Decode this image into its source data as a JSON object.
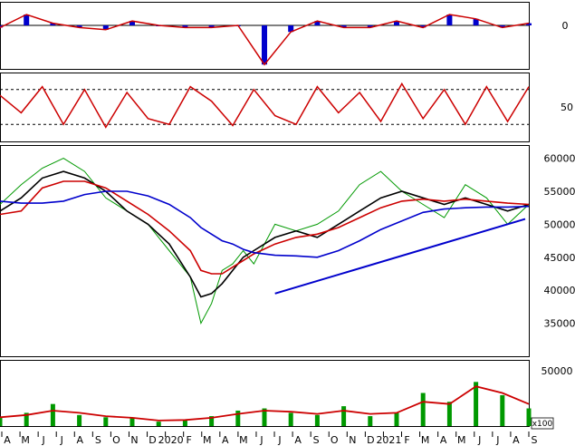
{
  "chart_data": [
    {
      "type": "line",
      "panel": "oscillator",
      "y_ticks": [
        "0"
      ],
      "colors": {
        "line": "#cc0000",
        "signal": "#cc0000",
        "histogram": "#0000cc"
      },
      "x": [
        0,
        5,
        10,
        15,
        20,
        25,
        30,
        35,
        40,
        45,
        50,
        55,
        60,
        65,
        70,
        75,
        80,
        85,
        90,
        95,
        100
      ],
      "series": [
        {
          "values": [
            -1,
            5,
            1,
            -1,
            -2,
            2,
            0,
            -1,
            -1,
            0,
            -18,
            -3,
            2,
            -1,
            -1,
            2,
            -1,
            5,
            3,
            -1,
            1
          ]
        }
      ]
    },
    {
      "type": "line",
      "panel": "stochastic",
      "y_ticks": [
        "50"
      ],
      "reference_lines": [
        80,
        20
      ],
      "colors": {
        "line": "#cc0000"
      },
      "x": [
        0,
        4,
        8,
        12,
        16,
        20,
        24,
        28,
        32,
        36,
        40,
        44,
        48,
        52,
        56,
        60,
        64,
        68,
        72,
        76,
        80,
        84,
        88,
        92,
        96,
        100
      ],
      "series": [
        {
          "values": [
            70,
            40,
            85,
            20,
            80,
            15,
            75,
            30,
            20,
            85,
            60,
            18,
            80,
            35,
            20,
            85,
            40,
            75,
            25,
            90,
            30,
            80,
            20,
            85,
            25,
            85
          ]
        }
      ]
    },
    {
      "type": "line",
      "panel": "price",
      "y_ticks": [
        "60000",
        "55000",
        "50000",
        "45000",
        "40000",
        "35000"
      ],
      "ylim": [
        30000,
        62000
      ],
      "colors": {
        "price": "#009900",
        "ma_short": "#000000",
        "ma_mid": "#cc0000",
        "ma_long": "#0000cc",
        "trendline": "#0000cc"
      },
      "x": [
        0,
        4,
        8,
        12,
        16,
        20,
        24,
        28,
        32,
        36,
        38,
        40,
        42,
        44,
        46,
        48,
        52,
        56,
        60,
        64,
        68,
        72,
        76,
        80,
        84,
        88,
        92,
        96,
        100
      ],
      "series": [
        {
          "values": [
            53000,
            56000,
            58500,
            60000,
            58000,
            54000,
            52000,
            50000,
            46000,
            42000,
            35000,
            38000,
            43000,
            44000,
            46000,
            44000,
            50000,
            49000,
            50000,
            52000,
            56000,
            58000,
            55000,
            53000,
            51000,
            56000,
            54000,
            50000,
            53000
          ]
        },
        {
          "values": [
            52000,
            54000,
            57000,
            58000,
            57000,
            55000,
            52000,
            50000,
            47000,
            42000,
            39000,
            39500,
            41000,
            43000,
            45000,
            46000,
            48000,
            49000,
            48000,
            50000,
            52000,
            54000,
            55000,
            54000,
            53000,
            54000,
            53000,
            52000,
            53000
          ]
        },
        {
          "values": [
            51500,
            52000,
            55500,
            56500,
            56500,
            55500,
            53500,
            51500,
            49000,
            46000,
            43000,
            42500,
            42500,
            43500,
            44500,
            45500,
            47000,
            48000,
            48500,
            49500,
            51000,
            52500,
            53500,
            53800,
            53500,
            53800,
            53500,
            53200,
            53000
          ]
        },
        {
          "values": [
            53500,
            53200,
            53200,
            53500,
            54500,
            55000,
            55000,
            54300,
            53000,
            51000,
            49500,
            48500,
            47500,
            47000,
            46200,
            45700,
            45300,
            45200,
            45000,
            46000,
            47500,
            49200,
            50500,
            51800,
            52300,
            52500,
            52600,
            52600,
            52700
          ]
        },
        {
          "values": [
            null,
            null,
            null,
            null,
            null,
            null,
            null,
            null,
            null,
            null,
            null,
            null,
            null,
            null,
            null,
            null,
            39500,
            null,
            null,
            null,
            null,
            null,
            null,
            null,
            null,
            null,
            null,
            null,
            50800
          ]
        }
      ]
    },
    {
      "type": "bar",
      "panel": "volume",
      "y_ticks": [
        "50000"
      ],
      "unit_label": "x100",
      "colors": {
        "volume": "#009900",
        "ma": "#cc0000"
      },
      "x": [
        0,
        5,
        10,
        15,
        20,
        25,
        30,
        35,
        40,
        45,
        50,
        55,
        60,
        65,
        70,
        75,
        80,
        85,
        90,
        95,
        100
      ],
      "series": [
        {
          "name": "",
          "values": [
            8000,
            12000,
            20000,
            10000,
            8000,
            7000,
            4000,
            6000,
            9000,
            14000,
            16000,
            12000,
            10000,
            18000,
            9000,
            12000,
            30000,
            22000,
            40000,
            28000,
            16000
          ]
        },
        {
          "name": "",
          "values": [
            8000,
            10000,
            14000,
            12000,
            9000,
            7500,
            5000,
            5500,
            7500,
            11000,
            14000,
            13000,
            11000,
            14000,
            11000,
            12000,
            22000,
            20000,
            36000,
            30000,
            20000
          ]
        }
      ]
    }
  ],
  "x_axis": {
    "labels": [
      "A",
      "M",
      "J",
      "J",
      "A",
      "S",
      "O",
      "N",
      "D",
      "2020",
      "F",
      "M",
      "A",
      "M",
      "J",
      "J",
      "A",
      "S",
      "O",
      "N",
      "D",
      "2021",
      "F",
      "M",
      "A",
      "M",
      "J",
      "J",
      "A",
      "S"
    ]
  }
}
